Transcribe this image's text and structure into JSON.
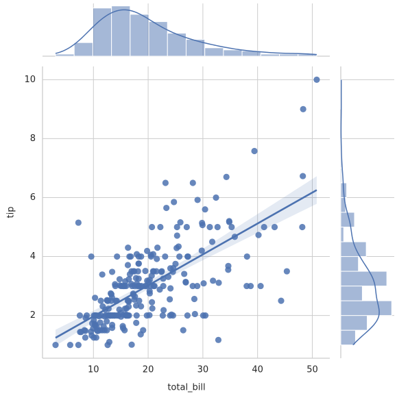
{
  "chart_data": {
    "type": "scatter",
    "xlabel": "total_bill",
    "ylabel": "tip",
    "color": "#4c72b0",
    "grid": true,
    "regression": true,
    "xlim": [
      0.69,
      53.2
    ],
    "ylim": [
      0.55,
      10.45
    ],
    "xticks": [
      10,
      20,
      30,
      40,
      50
    ],
    "yticks": [
      2,
      4,
      6,
      8,
      10
    ],
    "x": [
      16.99,
      10.34,
      21.01,
      23.68,
      24.59,
      25.29,
      8.77,
      26.88,
      15.04,
      14.78,
      10.27,
      35.26,
      15.42,
      18.43,
      14.83,
      21.58,
      10.33,
      16.29,
      16.97,
      20.65,
      17.92,
      20.29,
      15.77,
      39.42,
      19.82,
      17.81,
      13.37,
      12.69,
      21.7,
      19.65,
      9.55,
      18.35,
      15.06,
      20.69,
      17.78,
      24.06,
      16.31,
      16.93,
      18.69,
      31.27,
      16.04,
      17.46,
      13.94,
      9.68,
      30.4,
      18.29,
      22.23,
      32.4,
      28.55,
      18.04,
      12.54,
      10.29,
      34.81,
      9.94,
      25.56,
      19.49,
      38.01,
      26.41,
      11.24,
      48.27,
      20.29,
      13.81,
      11.02,
      18.29,
      17.59,
      20.08,
      16.45,
      3.07,
      20.23,
      15.01,
      12.02,
      17.07,
      26.86,
      25.28,
      14.73,
      10.51,
      17.92,
      27.2,
      22.76,
      17.29,
      19.44,
      16.66,
      10.07,
      32.68,
      15.98,
      34.83,
      13.03,
      18.28,
      24.71,
      21.16,
      28.97,
      22.49,
      5.75,
      16.32,
      22.75,
      40.17,
      27.28,
      12.03,
      21.01,
      12.46,
      11.35,
      15.38,
      44.3,
      22.42,
      20.92,
      15.36,
      20.49,
      25.21,
      18.24,
      14.31,
      14.0,
      7.25,
      38.07,
      23.95,
      25.71,
      17.31,
      29.93,
      10.65,
      12.43,
      24.08,
      11.69,
      13.42,
      14.26,
      15.95,
      12.48,
      29.8,
      8.52,
      14.52,
      11.38,
      22.82,
      19.08,
      20.27,
      11.17,
      12.26,
      18.26,
      8.51,
      10.33,
      14.15,
      16.0,
      13.16,
      17.47,
      34.3,
      41.19,
      27.05,
      16.43,
      8.35,
      18.64,
      11.87,
      9.78,
      7.51,
      14.07,
      13.13,
      17.26,
      24.55,
      19.77,
      29.85,
      48.17,
      25.0,
      13.39,
      16.49,
      21.5,
      12.66,
      16.21,
      13.81,
      17.51,
      24.52,
      20.76,
      31.71,
      10.59,
      10.63,
      50.81,
      15.81,
      7.25,
      31.85,
      16.82,
      32.9,
      17.89,
      14.48,
      9.6,
      34.63,
      34.65,
      23.33,
      45.35,
      23.17,
      40.55,
      20.69,
      20.9,
      30.46,
      18.15,
      23.1,
      15.69,
      19.81,
      28.44,
      15.48,
      16.58,
      7.56,
      10.34,
      43.11,
      13.0,
      13.51,
      18.71,
      12.74,
      13.0,
      16.4,
      20.53,
      16.47,
      26.59,
      38.73,
      24.27,
      12.76,
      30.06,
      25.89,
      48.33,
      13.27,
      28.17,
      12.9,
      28.15,
      11.59,
      7.74,
      30.14,
      12.16,
      13.42,
      8.58,
      15.98,
      13.42,
      16.27,
      10.09,
      20.45,
      13.28,
      22.12,
      24.01,
      15.69,
      11.61,
      10.77,
      15.53,
      10.07,
      12.6,
      32.83,
      35.83,
      29.03,
      27.18,
      22.67,
      17.82,
      18.78
    ],
    "values": [
      1.01,
      1.66,
      3.5,
      3.31,
      3.61,
      4.71,
      2.0,
      3.12,
      1.96,
      3.23,
      1.71,
      5.0,
      1.57,
      3.0,
      3.02,
      3.92,
      1.67,
      3.71,
      3.5,
      3.35,
      4.08,
      2.75,
      2.23,
      7.58,
      3.18,
      2.34,
      2.0,
      2.0,
      4.3,
      3.0,
      1.45,
      2.5,
      3.0,
      2.45,
      3.27,
      3.6,
      2.0,
      3.07,
      2.31,
      5.0,
      2.24,
      2.54,
      3.06,
      1.32,
      5.6,
      3.0,
      5.0,
      6.0,
      2.05,
      3.0,
      2.5,
      2.6,
      5.2,
      1.56,
      4.34,
      3.51,
      3.0,
      1.5,
      1.76,
      6.73,
      3.21,
      2.0,
      1.98,
      3.76,
      2.64,
      3.15,
      2.47,
      1.0,
      2.01,
      2.09,
      1.97,
      3.0,
      3.14,
      5.0,
      2.2,
      1.25,
      3.08,
      4.0,
      3.0,
      2.71,
      3.0,
      3.4,
      1.83,
      5.0,
      2.03,
      5.17,
      2.0,
      4.0,
      5.85,
      3.0,
      3.0,
      3.5,
      1.0,
      4.3,
      3.25,
      4.73,
      4.0,
      1.5,
      3.0,
      1.5,
      2.5,
      3.0,
      2.5,
      3.48,
      4.08,
      1.64,
      4.06,
      4.29,
      3.76,
      4.0,
      3.0,
      1.0,
      4.0,
      2.55,
      4.0,
      3.5,
      5.07,
      1.5,
      1.8,
      2.92,
      2.31,
      1.68,
      2.5,
      2.0,
      2.52,
      4.2,
      1.48,
      2.0,
      2.0,
      2.18,
      1.5,
      2.83,
      1.5,
      2.0,
      3.25,
      1.25,
      2.0,
      2.0,
      2.0,
      2.75,
      3.5,
      6.7,
      5.0,
      5.0,
      2.3,
      1.5,
      1.36,
      1.63,
      1.73,
      2.0,
      2.5,
      2.0,
      2.74,
      2.0,
      2.0,
      5.14,
      5.0,
      3.75,
      2.61,
      2.0,
      3.5,
      2.5,
      2.0,
      2.0,
      3.0,
      3.48,
      2.24,
      4.5,
      1.61,
      2.0,
      10.0,
      3.16,
      5.15,
      3.18,
      4.0,
      3.11,
      2.0,
      2.0,
      4.0,
      3.55,
      3.68,
      5.65,
      3.5,
      6.5,
      3.0,
      5.0,
      3.5,
      2.0,
      3.5,
      4.0,
      1.5,
      4.19,
      2.56,
      2.02,
      4.0,
      1.44,
      2.0,
      5.0,
      2.0,
      2.0,
      4.0,
      2.01,
      2.0,
      2.5,
      4.0,
      3.23,
      3.41,
      3.0,
      2.03,
      2.23,
      2.0,
      5.16,
      9.0,
      2.5,
      6.5,
      1.1,
      3.0,
      1.5,
      1.44,
      3.09,
      2.2,
      3.48,
      1.92,
      3.0,
      1.58,
      2.5,
      2.0,
      3.0,
      2.72,
      2.88,
      2.0,
      3.0,
      3.39,
      1.47,
      3.0,
      1.25,
      1.0,
      1.17,
      4.67,
      5.92,
      2.0,
      2.0,
      1.75,
      3.0
    ],
    "marginal_x": {
      "bins": [
        3.07,
        6.48,
        9.89,
        13.3,
        16.71,
        20.12,
        23.53,
        26.94,
        30.35,
        33.76,
        37.17,
        40.58,
        43.99,
        47.4,
        50.81
      ],
      "counts": [
        2,
        13,
        46,
        48,
        40,
        33,
        22,
        16,
        8,
        6,
        5,
        2,
        2,
        2
      ]
    },
    "marginal_y": {
      "bins": [
        1.0,
        1.5,
        2.0,
        2.5,
        3.0,
        3.5,
        4.0,
        4.5,
        5.0,
        5.5,
        6.0,
        6.5,
        7.0,
        7.5,
        8.0,
        8.5,
        9.0,
        9.5,
        10.0
      ],
      "counts": [
        15,
        27,
        52,
        22,
        47,
        18,
        26,
        3,
        14,
        5,
        6,
        1,
        1,
        1,
        0,
        0,
        1,
        1
      ]
    }
  }
}
